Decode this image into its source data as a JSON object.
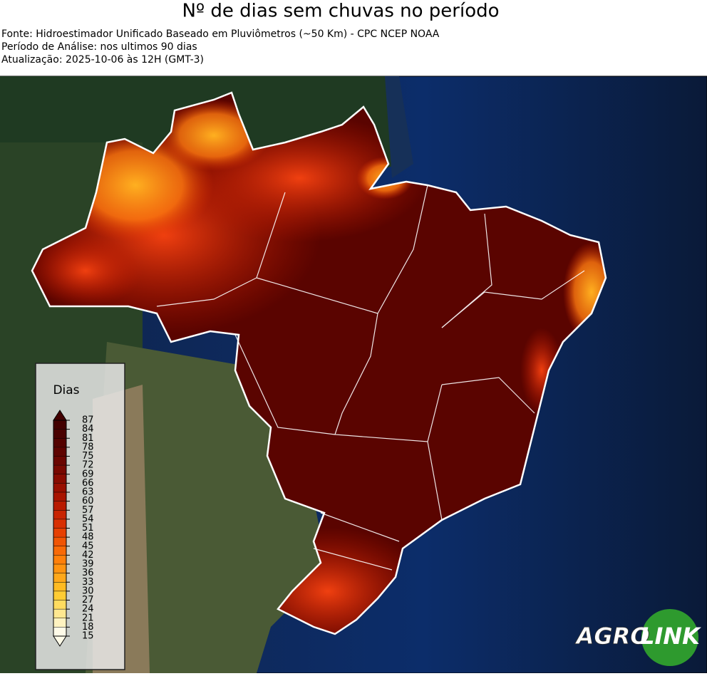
{
  "title": "Nº de dias sem chuvas no período",
  "source_lines": [
    "Fonte: Hidroestimador Unificado Baseado em Pluviômetros (~50 Km) - CPC NCEP NOAA",
    "Período de Análise: nos ultimos 90 dias",
    "Atualização: 2025-10-06 às 12H (GMT-3)"
  ],
  "colorbar": {
    "label": "Dias",
    "ticks": [
      15,
      18,
      21,
      24,
      27,
      30,
      33,
      36,
      39,
      42,
      45,
      48,
      51,
      54,
      57,
      60,
      63,
      66,
      69,
      72,
      75,
      78,
      81,
      84,
      87
    ],
    "colors": [
      "#fffbe8",
      "#fff3c0",
      "#ffe890",
      "#ffdc60",
      "#ffcc33",
      "#ffbb22",
      "#ffa81a",
      "#ff9411",
      "#ff800b",
      "#f86a08",
      "#f05505",
      "#e64003",
      "#d83002",
      "#c82401",
      "#b81a00",
      "#a81400",
      "#980f00",
      "#880b00",
      "#780800",
      "#6a0500",
      "#5e0300",
      "#540200",
      "#4a0100",
      "#420000"
    ]
  },
  "logo": {
    "left": "AGRO",
    "right": "LINK"
  }
}
